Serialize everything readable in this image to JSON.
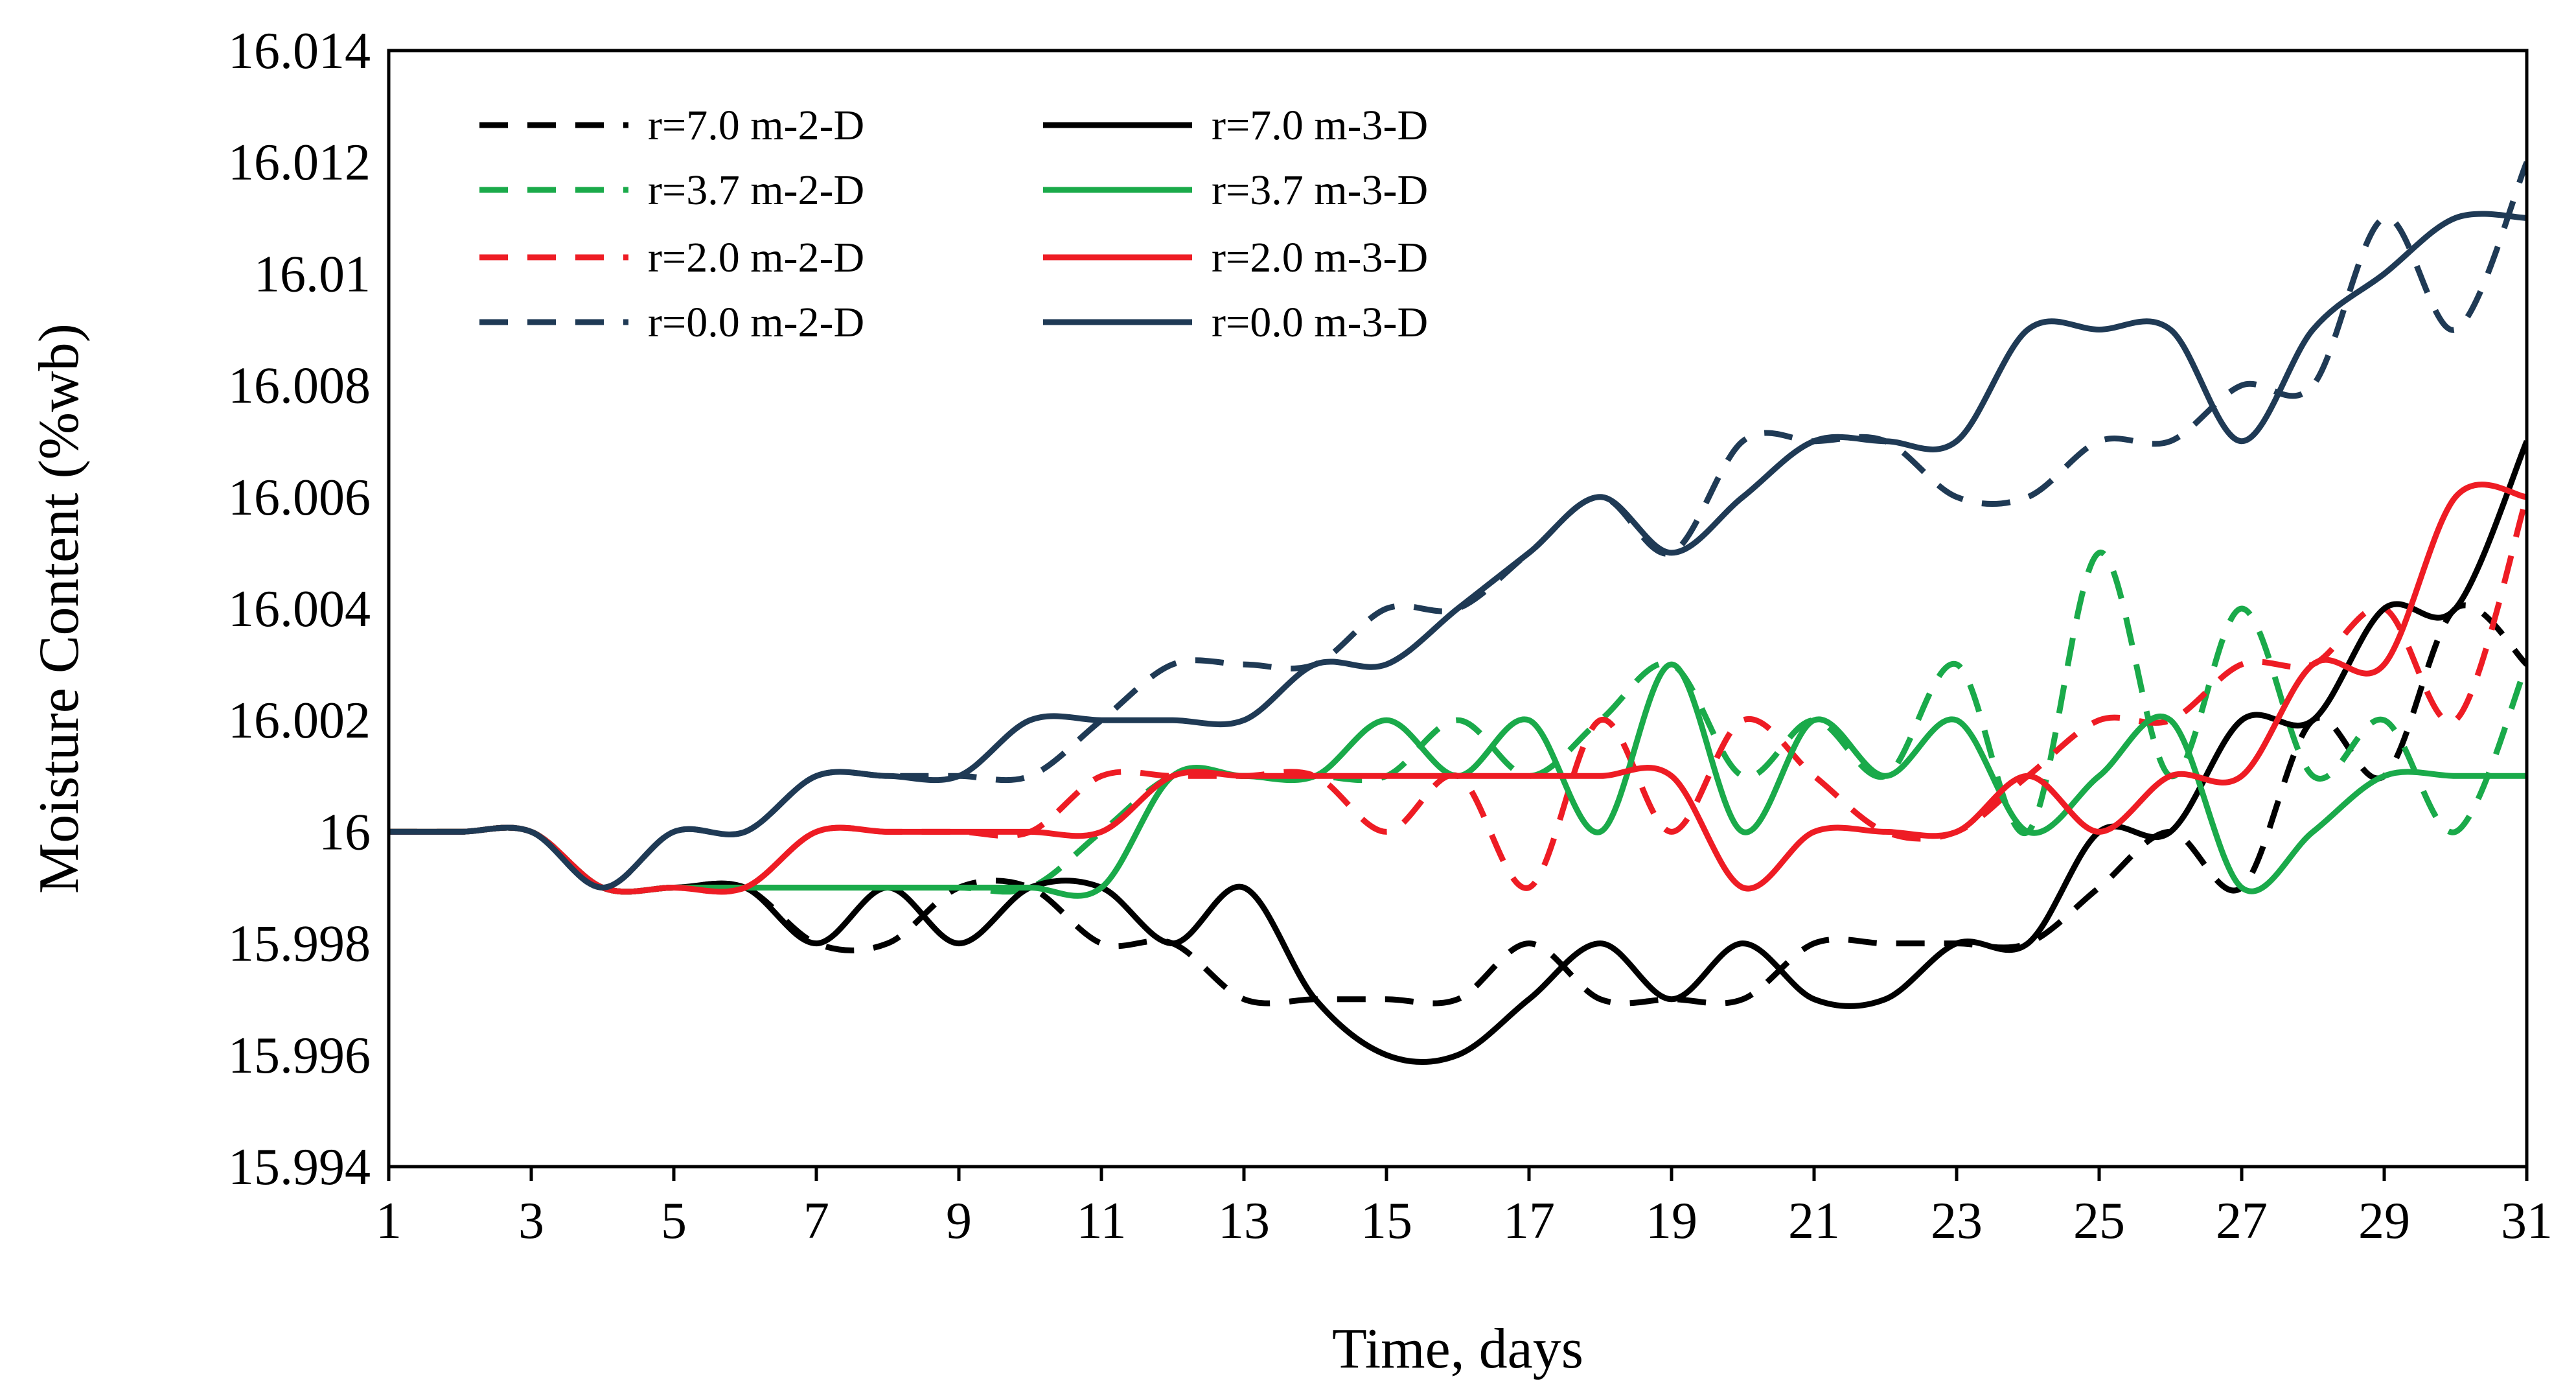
{
  "chart_data": {
    "type": "line",
    "title": "",
    "xlabel": "Time, days",
    "ylabel": "Moisture Content (%wb)",
    "xlim": [
      1,
      31
    ],
    "ylim": [
      15.994,
      16.014
    ],
    "x_ticks": [
      "1",
      "3",
      "5",
      "7",
      "9",
      "11",
      "13",
      "15",
      "17",
      "19",
      "21",
      "23",
      "25",
      "27",
      "29",
      "31"
    ],
    "y_ticks": [
      "15.994",
      "15.996",
      "15.998",
      "16",
      "16.002",
      "16.004",
      "16.006",
      "16.008",
      "16.01",
      "16.012",
      "16.014"
    ],
    "legend_position": "top-left",
    "x": [
      1,
      2,
      3,
      4,
      5,
      6,
      7,
      8,
      9,
      10,
      11,
      12,
      13,
      14,
      15,
      16,
      17,
      18,
      19,
      20,
      21,
      22,
      23,
      24,
      25,
      26,
      27,
      28,
      29,
      30,
      31
    ],
    "series": [
      {
        "name": "r=7.0 m-2-D",
        "color": "#000000",
        "dash": "dashed",
        "values": [
          16,
          16,
          16,
          15.999,
          15.999,
          15.999,
          15.998,
          15.998,
          15.999,
          15.999,
          15.998,
          15.998,
          15.997,
          15.997,
          15.997,
          15.997,
          15.998,
          15.997,
          15.997,
          15.997,
          15.998,
          15.998,
          15.998,
          15.998,
          15.999,
          16,
          15.999,
          16.002,
          16.001,
          16.004,
          16.003
        ]
      },
      {
        "name": "r=3.7 m-2-D",
        "color": "#1aaa4a",
        "dash": "dashed",
        "values": [
          16,
          16,
          16,
          15.999,
          15.999,
          15.999,
          15.999,
          15.999,
          15.999,
          15.999,
          16,
          16.001,
          16.001,
          16.001,
          16.001,
          16.002,
          16.001,
          16.002,
          16.003,
          16.001,
          16.002,
          16.001,
          16.003,
          16,
          16.005,
          16.001,
          16.004,
          16.001,
          16.002,
          16,
          16.003
        ]
      },
      {
        "name": "r=2.0 m-2-D",
        "color": "#ee1c24",
        "dash": "dashed",
        "values": [
          16,
          16,
          16,
          15.999,
          15.999,
          15.999,
          16,
          16,
          16,
          16,
          16.001,
          16.001,
          16.001,
          16.001,
          16,
          16.001,
          15.999,
          16.002,
          16,
          16.002,
          16.001,
          16,
          16,
          16.001,
          16.002,
          16.002,
          16.003,
          16.003,
          16.004,
          16.002,
          16.006
        ]
      },
      {
        "name": "r=0.0 m-2-D",
        "color": "#1f3a55",
        "dash": "dashed",
        "values": [
          16,
          16,
          16,
          15.999,
          16,
          16,
          16.001,
          16.001,
          16.001,
          16.001,
          16.002,
          16.003,
          16.003,
          16.003,
          16.004,
          16.004,
          16.005,
          16.006,
          16.005,
          16.007,
          16.007,
          16.007,
          16.006,
          16.006,
          16.007,
          16.007,
          16.008,
          16.008,
          16.011,
          16.009,
          16.012
        ]
      },
      {
        "name": "r=7.0 m-3-D",
        "color": "#000000",
        "dash": "solid",
        "values": [
          16,
          16,
          16,
          15.999,
          15.999,
          15.999,
          15.998,
          15.999,
          15.998,
          15.999,
          15.999,
          15.998,
          15.999,
          15.997,
          15.996,
          15.996,
          15.997,
          15.998,
          15.997,
          15.998,
          15.997,
          15.997,
          15.998,
          15.998,
          16,
          16,
          16.002,
          16.002,
          16.004,
          16.004,
          16.007
        ]
      },
      {
        "name": "r=3.7 m-3-D",
        "color": "#1aaa4a",
        "dash": "solid",
        "values": [
          16,
          16,
          16,
          15.999,
          15.999,
          15.999,
          15.999,
          15.999,
          15.999,
          15.999,
          15.999,
          16.001,
          16.001,
          16.001,
          16.002,
          16.001,
          16.002,
          16,
          16.003,
          16,
          16.002,
          16.001,
          16.002,
          16,
          16.001,
          16.002,
          15.999,
          16,
          16.001,
          16.001,
          16.001
        ]
      },
      {
        "name": "r=2.0 m-3-D",
        "color": "#ee1c24",
        "dash": "solid",
        "values": [
          16,
          16,
          16,
          15.999,
          15.999,
          15.999,
          16,
          16,
          16,
          16,
          16,
          16.001,
          16.001,
          16.001,
          16.001,
          16.001,
          16.001,
          16.001,
          16.001,
          15.999,
          16,
          16,
          16,
          16.001,
          16,
          16.001,
          16.001,
          16.003,
          16.003,
          16.006,
          16.006
        ]
      },
      {
        "name": "r=0.0 m-3-D",
        "color": "#1f3a55",
        "dash": "solid",
        "values": [
          16,
          16,
          16,
          15.999,
          16,
          16,
          16.001,
          16.001,
          16.001,
          16.002,
          16.002,
          16.002,
          16.002,
          16.003,
          16.003,
          16.004,
          16.005,
          16.006,
          16.005,
          16.006,
          16.007,
          16.007,
          16.007,
          16.009,
          16.009,
          16.009,
          16.007,
          16.009,
          16.01,
          16.011,
          16.011
        ]
      }
    ]
  }
}
